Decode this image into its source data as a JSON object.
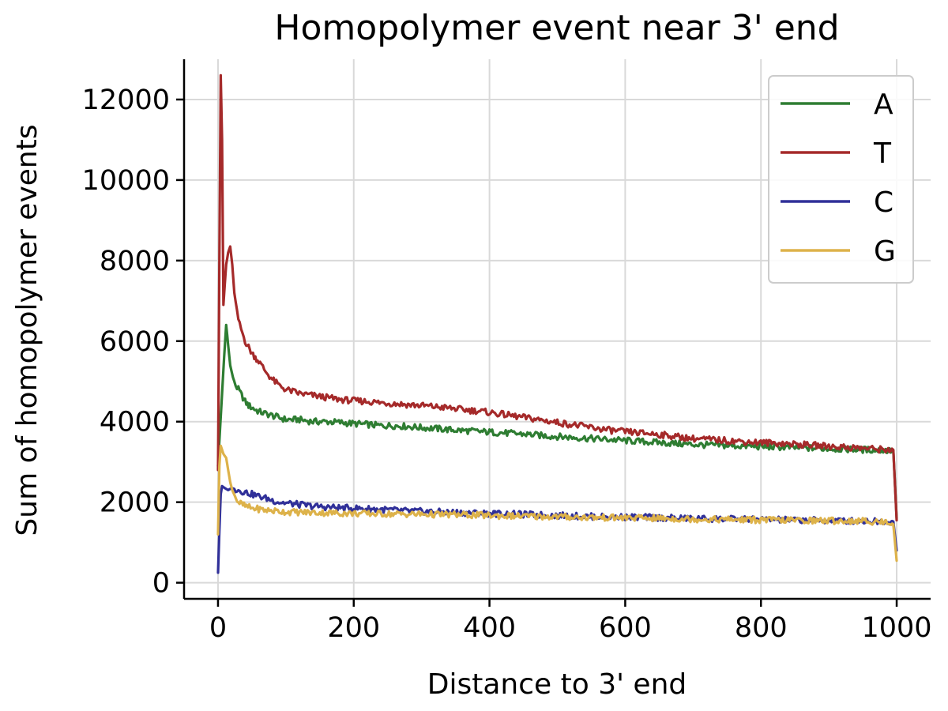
{
  "chart_data": {
    "type": "line",
    "title": "Homopolymer event near 3' end",
    "xlabel": "Distance to 3' end",
    "ylabel": "Sum of homopolymer events",
    "xlim": [
      -50,
      1050
    ],
    "ylim": [
      -400,
      13000
    ],
    "xticks": [
      0,
      200,
      400,
      600,
      800,
      1000
    ],
    "yticks": [
      0,
      2000,
      4000,
      6000,
      8000,
      10000,
      12000
    ],
    "grid": true,
    "legend_position": "top-right",
    "series": [
      {
        "name": "A",
        "color": "#2e7d32",
        "points": [
          [
            0,
            2900
          ],
          [
            3,
            3800
          ],
          [
            6,
            4700
          ],
          [
            9,
            5600
          ],
          [
            12,
            6400
          ],
          [
            15,
            5900
          ],
          [
            18,
            5400
          ],
          [
            22,
            5100
          ],
          [
            26,
            4900
          ],
          [
            30,
            4800
          ],
          [
            35,
            4650
          ],
          [
            40,
            4500
          ],
          [
            45,
            4400
          ],
          [
            50,
            4350
          ],
          [
            55,
            4300
          ],
          [
            60,
            4250
          ],
          [
            70,
            4200
          ],
          [
            80,
            4150
          ],
          [
            90,
            4100
          ],
          [
            100,
            4050
          ],
          [
            120,
            4050
          ],
          [
            140,
            4000
          ],
          [
            160,
            4000
          ],
          [
            180,
            3980
          ],
          [
            200,
            3950
          ],
          [
            220,
            3930
          ],
          [
            240,
            3900
          ],
          [
            260,
            3900
          ],
          [
            280,
            3880
          ],
          [
            300,
            3850
          ],
          [
            320,
            3830
          ],
          [
            340,
            3800
          ],
          [
            360,
            3780
          ],
          [
            380,
            3760
          ],
          [
            400,
            3740
          ],
          [
            420,
            3720
          ],
          [
            440,
            3700
          ],
          [
            460,
            3680
          ],
          [
            480,
            3650
          ],
          [
            500,
            3630
          ],
          [
            520,
            3610
          ],
          [
            540,
            3590
          ],
          [
            560,
            3570
          ],
          [
            580,
            3550
          ],
          [
            600,
            3530
          ],
          [
            620,
            3510
          ],
          [
            640,
            3490
          ],
          [
            660,
            3470
          ],
          [
            680,
            3450
          ],
          [
            700,
            3430
          ],
          [
            720,
            3420
          ],
          [
            740,
            3410
          ],
          [
            760,
            3400
          ],
          [
            780,
            3390
          ],
          [
            800,
            3380
          ],
          [
            820,
            3370
          ],
          [
            840,
            3360
          ],
          [
            860,
            3350
          ],
          [
            880,
            3340
          ],
          [
            900,
            3330
          ],
          [
            920,
            3320
          ],
          [
            940,
            3310
          ],
          [
            960,
            3300
          ],
          [
            980,
            3290
          ],
          [
            995,
            3280
          ],
          [
            1000,
            1600
          ]
        ]
      },
      {
        "name": "T",
        "color": "#a52a2a",
        "points": [
          [
            0,
            2800
          ],
          [
            2,
            8000
          ],
          [
            4,
            12600
          ],
          [
            6,
            11000
          ],
          [
            8,
            6900
          ],
          [
            10,
            7400
          ],
          [
            12,
            7900
          ],
          [
            15,
            8200
          ],
          [
            18,
            8350
          ],
          [
            21,
            7900
          ],
          [
            24,
            7200
          ],
          [
            28,
            6700
          ],
          [
            32,
            6400
          ],
          [
            36,
            6200
          ],
          [
            40,
            6000
          ],
          [
            45,
            5850
          ],
          [
            50,
            5700
          ],
          [
            55,
            5600
          ],
          [
            60,
            5500
          ],
          [
            70,
            5250
          ],
          [
            80,
            5050
          ],
          [
            90,
            4900
          ],
          [
            100,
            4800
          ],
          [
            120,
            4700
          ],
          [
            140,
            4650
          ],
          [
            160,
            4600
          ],
          [
            180,
            4550
          ],
          [
            200,
            4520
          ],
          [
            220,
            4500
          ],
          [
            240,
            4470
          ],
          [
            260,
            4450
          ],
          [
            280,
            4420
          ],
          [
            300,
            4400
          ],
          [
            320,
            4370
          ],
          [
            340,
            4340
          ],
          [
            360,
            4300
          ],
          [
            380,
            4270
          ],
          [
            400,
            4230
          ],
          [
            420,
            4180
          ],
          [
            440,
            4130
          ],
          [
            460,
            4080
          ],
          [
            480,
            4030
          ],
          [
            500,
            3980
          ],
          [
            520,
            3930
          ],
          [
            540,
            3880
          ],
          [
            560,
            3830
          ],
          [
            580,
            3780
          ],
          [
            600,
            3750
          ],
          [
            620,
            3720
          ],
          [
            640,
            3700
          ],
          [
            660,
            3660
          ],
          [
            680,
            3620
          ],
          [
            700,
            3580
          ],
          [
            720,
            3560
          ],
          [
            740,
            3540
          ],
          [
            760,
            3520
          ],
          [
            780,
            3500
          ],
          [
            800,
            3480
          ],
          [
            820,
            3470
          ],
          [
            840,
            3450
          ],
          [
            860,
            3430
          ],
          [
            880,
            3410
          ],
          [
            900,
            3390
          ],
          [
            920,
            3370
          ],
          [
            940,
            3350
          ],
          [
            960,
            3330
          ],
          [
            980,
            3310
          ],
          [
            995,
            3300
          ],
          [
            1000,
            1550
          ]
        ]
      },
      {
        "name": "C",
        "color": "#303099",
        "points": [
          [
            0,
            250
          ],
          [
            2,
            1300
          ],
          [
            4,
            2200
          ],
          [
            6,
            2400
          ],
          [
            10,
            2350
          ],
          [
            15,
            2300
          ],
          [
            20,
            2350
          ],
          [
            30,
            2300
          ],
          [
            40,
            2250
          ],
          [
            50,
            2200
          ],
          [
            60,
            2150
          ],
          [
            70,
            2100
          ],
          [
            80,
            2050
          ],
          [
            90,
            2000
          ],
          [
            100,
            1980
          ],
          [
            120,
            1940
          ],
          [
            140,
            1900
          ],
          [
            160,
            1880
          ],
          [
            180,
            1860
          ],
          [
            200,
            1850
          ],
          [
            240,
            1820
          ],
          [
            280,
            1780
          ],
          [
            320,
            1760
          ],
          [
            360,
            1740
          ],
          [
            400,
            1720
          ],
          [
            440,
            1700
          ],
          [
            480,
            1680
          ],
          [
            520,
            1660
          ],
          [
            560,
            1640
          ],
          [
            600,
            1630
          ],
          [
            640,
            1620
          ],
          [
            680,
            1600
          ],
          [
            720,
            1590
          ],
          [
            760,
            1580
          ],
          [
            800,
            1570
          ],
          [
            840,
            1560
          ],
          [
            880,
            1550
          ],
          [
            920,
            1540
          ],
          [
            960,
            1530
          ],
          [
            995,
            1520
          ],
          [
            1000,
            800
          ]
        ]
      },
      {
        "name": "G",
        "color": "#ddb24a",
        "points": [
          [
            0,
            1200
          ],
          [
            2,
            2900
          ],
          [
            4,
            3400
          ],
          [
            6,
            3300
          ],
          [
            8,
            3200
          ],
          [
            10,
            3150
          ],
          [
            12,
            3100
          ],
          [
            15,
            2800
          ],
          [
            18,
            2500
          ],
          [
            21,
            2300
          ],
          [
            25,
            2150
          ],
          [
            30,
            2000
          ],
          [
            35,
            1950
          ],
          [
            40,
            1900
          ],
          [
            50,
            1850
          ],
          [
            60,
            1830
          ],
          [
            70,
            1800
          ],
          [
            80,
            1790
          ],
          [
            100,
            1760
          ],
          [
            120,
            1750
          ],
          [
            150,
            1740
          ],
          [
            200,
            1720
          ],
          [
            250,
            1710
          ],
          [
            300,
            1700
          ],
          [
            350,
            1690
          ],
          [
            400,
            1670
          ],
          [
            450,
            1650
          ],
          [
            500,
            1640
          ],
          [
            550,
            1620
          ],
          [
            600,
            1610
          ],
          [
            650,
            1600
          ],
          [
            700,
            1580
          ],
          [
            750,
            1570
          ],
          [
            800,
            1560
          ],
          [
            850,
            1550
          ],
          [
            900,
            1540
          ],
          [
            950,
            1530
          ],
          [
            990,
            1500
          ],
          [
            995,
            1450
          ],
          [
            1000,
            550
          ]
        ]
      }
    ]
  }
}
